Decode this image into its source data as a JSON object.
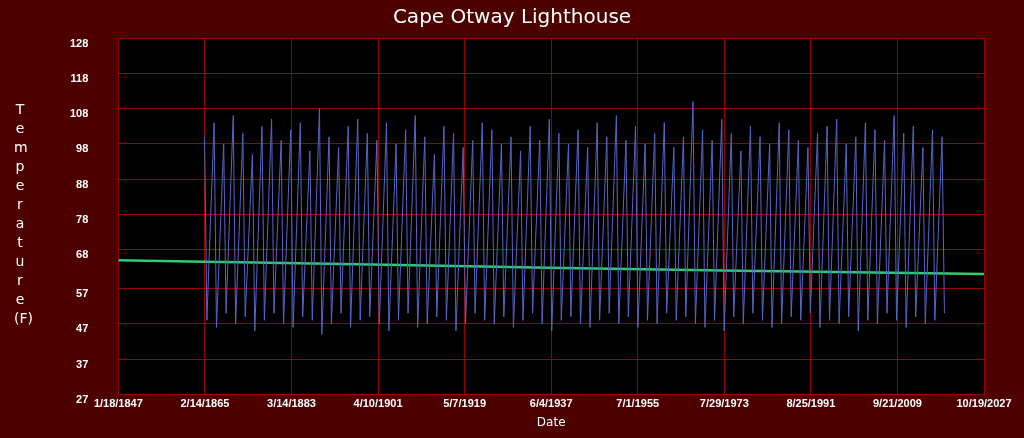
{
  "chart_data": {
    "type": "line",
    "title": "Cape Otway Lighthouse",
    "xlabel": "Date",
    "ylabel": "Temperature (F)",
    "xlim": [
      "1847-01-18",
      "2027-10-19"
    ],
    "xticks": [
      {
        "value": "1847-01-18",
        "label": "1/18/1847"
      },
      {
        "value": "1865-02-14",
        "label": "2/14/1865"
      },
      {
        "value": "1883-03-14",
        "label": "3/14/1883"
      },
      {
        "value": "1901-04-10",
        "label": "4/10/1901"
      },
      {
        "value": "1919-05-07",
        "label": "5/7/1919"
      },
      {
        "value": "1937-06-04",
        "label": "6/4/1937"
      },
      {
        "value": "1955-07-01",
        "label": "7/1/1955"
      },
      {
        "value": "1973-07-29",
        "label": "7/29/1973"
      },
      {
        "value": "1991-08-25",
        "label": "8/25/1991"
      },
      {
        "value": "2009-09-21",
        "label": "9/21/2009"
      },
      {
        "value": "2027-10-19",
        "label": "10/19/2027"
      }
    ],
    "ylim": [
      27,
      128
    ],
    "yticks": [
      27,
      37,
      47,
      57,
      68,
      78,
      88,
      98,
      108,
      118,
      128
    ],
    "grid": true,
    "marker": "none",
    "line_style": "solid",
    "series": [
      {
        "color": "#5865c4",
        "x": [
          "1865-01-15",
          "1865-07-15",
          "1867-01-15",
          "1867-07-15",
          "1869-01-15",
          "1869-07-15",
          "1871-01-15",
          "1871-07-15",
          "1873-01-15",
          "1873-07-15",
          "1875-01-15",
          "1875-07-15",
          "1877-01-15",
          "1877-07-15",
          "1879-01-15",
          "1879-07-15",
          "1881-01-15",
          "1881-07-15",
          "1883-01-15",
          "1883-07-15",
          "1885-01-15",
          "1885-07-15",
          "1887-01-15",
          "1887-07-15",
          "1889-01-15",
          "1889-07-15",
          "1891-01-15",
          "1891-07-15",
          "1893-01-15",
          "1893-07-15",
          "1895-01-15",
          "1895-07-15",
          "1897-01-15",
          "1897-07-15",
          "1899-01-15",
          "1899-07-15",
          "1901-01-15",
          "1901-07-15",
          "1903-01-15",
          "1903-07-15",
          "1905-01-15",
          "1905-07-15",
          "1907-01-15",
          "1907-07-15",
          "1909-01-15",
          "1909-07-15",
          "1911-01-15",
          "1911-07-15",
          "1913-01-15",
          "1913-07-15",
          "1915-01-15",
          "1915-07-15",
          "1917-01-15",
          "1917-07-15",
          "1919-01-15",
          "1919-07-15",
          "1921-01-15",
          "1921-07-15",
          "1923-01-15",
          "1923-07-15",
          "1925-01-15",
          "1925-07-15",
          "1927-01-15",
          "1927-07-15",
          "1929-01-15",
          "1929-07-15",
          "1931-01-15",
          "1931-07-15",
          "1933-01-15",
          "1933-07-15",
          "1935-01-15",
          "1935-07-15",
          "1937-01-15",
          "1937-07-15",
          "1939-01-15",
          "1939-07-15",
          "1941-01-15",
          "1941-07-15",
          "1943-01-15",
          "1943-07-15",
          "1945-01-15",
          "1945-07-15",
          "1947-01-15",
          "1947-07-15",
          "1949-01-15",
          "1949-07-15",
          "1951-01-15",
          "1951-07-15",
          "1953-01-15",
          "1953-07-15",
          "1955-01-15",
          "1955-07-15",
          "1957-01-15",
          "1957-07-15",
          "1959-01-15",
          "1959-07-15",
          "1961-01-15",
          "1961-07-15",
          "1963-01-15",
          "1963-07-15",
          "1965-01-15",
          "1965-07-15",
          "1967-01-15",
          "1967-07-15",
          "1969-01-15",
          "1969-07-15",
          "1971-01-15",
          "1971-07-15",
          "1973-01-15",
          "1973-07-15",
          "1975-01-15",
          "1975-07-15",
          "1977-01-15",
          "1977-07-15",
          "1979-01-15",
          "1979-07-15",
          "1981-01-15",
          "1981-07-15",
          "1983-01-15",
          "1983-07-15",
          "1985-01-15",
          "1985-07-15",
          "1987-01-15",
          "1987-07-15",
          "1989-01-15",
          "1989-07-15",
          "1991-01-15",
          "1991-07-15",
          "1993-01-15",
          "1993-07-15",
          "1995-01-15",
          "1995-07-15",
          "1997-01-15",
          "1997-07-15",
          "1999-01-15",
          "1999-07-15",
          "2001-01-15",
          "2001-07-15",
          "2003-01-15",
          "2003-07-15",
          "2005-01-15",
          "2005-07-15",
          "2007-01-15",
          "2007-07-15",
          "2009-01-15",
          "2009-07-15",
          "2011-01-15",
          "2011-07-15",
          "2013-01-15",
          "2013-07-15",
          "2015-01-15",
          "2015-07-15",
          "2017-01-15",
          "2017-07-15",
          "2019-01-15",
          "2019-07-15"
        ],
        "values": [
          100,
          48,
          104,
          46,
          98,
          50,
          106,
          47,
          101,
          49,
          95,
          45,
          103,
          48,
          105,
          50,
          99,
          47,
          102,
          46,
          104,
          49,
          96,
          48,
          108,
          44,
          100,
          47,
          97,
          50,
          103,
          46,
          105,
          48,
          101,
          49,
          99,
          47,
          104,
          45,
          98,
          48,
          102,
          50,
          106,
          46,
          100,
          47,
          95,
          49,
          103,
          48,
          101,
          45,
          97,
          47,
          99,
          50,
          104,
          48,
          102,
          47,
          98,
          49,
          100,
          46,
          96,
          48,
          103,
          50,
          99,
          47,
          105,
          45,
          101,
          48,
          98,
          49,
          102,
          47,
          97,
          46,
          104,
          48,
          100,
          50,
          106,
          47,
          99,
          49,
          103,
          46,
          98,
          48,
          101,
          47,
          104,
          50,
          97,
          48,
          100,
          49,
          110,
          47,
          102,
          46,
          99,
          48,
          105,
          45,
          101,
          49,
          96,
          47,
          103,
          50,
          100,
          48,
          98,
          46,
          104,
          47,
          102,
          49,
          99,
          48,
          97,
          50,
          101,
          46,
          103,
          48,
          105,
          47,
          98,
          49,
          100,
          45,
          104,
          48,
          102,
          47,
          99,
          50,
          106,
          48,
          101,
          46,
          103,
          49,
          97,
          47,
          102,
          48,
          100,
          50
        ]
      },
      {
        "color": "#2ecc71",
        "x": [
          "1847-01-18",
          "1865-01-01",
          "1900-01-01",
          "1940-01-01",
          "1980-01-01",
          "2027-10-19"
        ],
        "values": [
          65.0,
          64.6,
          63.8,
          62.8,
          62.0,
          61.1
        ]
      }
    ]
  }
}
